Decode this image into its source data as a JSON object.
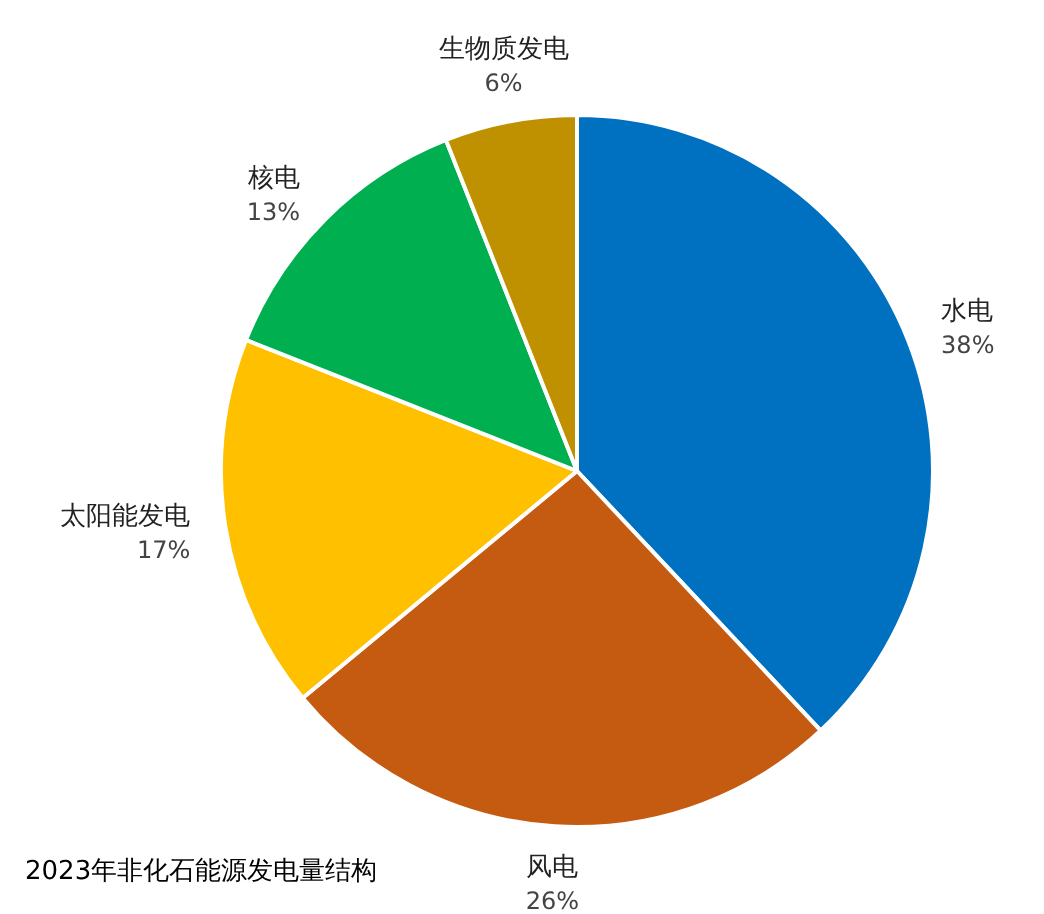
{
  "chart_data": {
    "type": "pie",
    "title": "2023年非化石能源发电量结构",
    "categories": [
      "水电",
      "风电",
      "太阳能发电",
      "核电",
      "生物质发电"
    ],
    "values": [
      38,
      26,
      17,
      13,
      6
    ],
    "value_labels": [
      "38%",
      "26%",
      "17%",
      "13%",
      "6%"
    ],
    "colors": [
      "#0070c0",
      "#c55a11",
      "#ffc000",
      "#00b050",
      "#bf9000"
    ]
  }
}
